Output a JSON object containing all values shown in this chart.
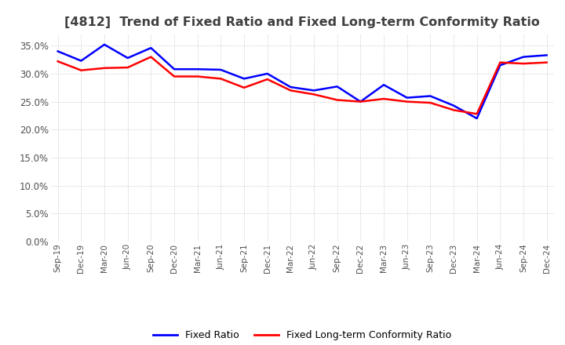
{
  "title": "[4812]  Trend of Fixed Ratio and Fixed Long-term Conformity Ratio",
  "legend_labels": [
    "Fixed Ratio",
    "Fixed Long-term Conformity Ratio"
  ],
  "line_colors": [
    "#0000FF",
    "#FF0000"
  ],
  "ylim": [
    0.0,
    0.37
  ],
  "yticks": [
    0.0,
    0.05,
    0.1,
    0.15,
    0.2,
    0.25,
    0.3,
    0.35
  ],
  "x_labels": [
    "Sep-19",
    "Dec-19",
    "Mar-20",
    "Jun-20",
    "Sep-20",
    "Dec-20",
    "Mar-21",
    "Jun-21",
    "Sep-21",
    "Dec-21",
    "Mar-22",
    "Jun-22",
    "Sep-22",
    "Dec-22",
    "Mar-23",
    "Jun-23",
    "Sep-23",
    "Dec-23",
    "Mar-24",
    "Jun-24",
    "Sep-24",
    "Dec-24"
  ],
  "fixed_ratio": [
    0.34,
    0.323,
    0.352,
    0.328,
    0.346,
    0.308,
    0.308,
    0.307,
    0.291,
    0.3,
    0.276,
    0.27,
    0.277,
    0.25,
    0.28,
    0.257,
    0.26,
    0.243,
    0.22,
    0.315,
    0.33,
    0.333
  ],
  "fixed_lt_ratio": [
    0.322,
    0.306,
    0.31,
    0.311,
    0.33,
    0.295,
    0.295,
    0.291,
    0.275,
    0.29,
    0.27,
    0.263,
    0.253,
    0.25,
    0.255,
    0.25,
    0.248,
    0.235,
    0.228,
    0.32,
    0.318,
    0.32
  ],
  "background_color": "#FFFFFF",
  "grid_color": "#BBBBBB",
  "title_color": "#404040",
  "line_width": 1.8
}
